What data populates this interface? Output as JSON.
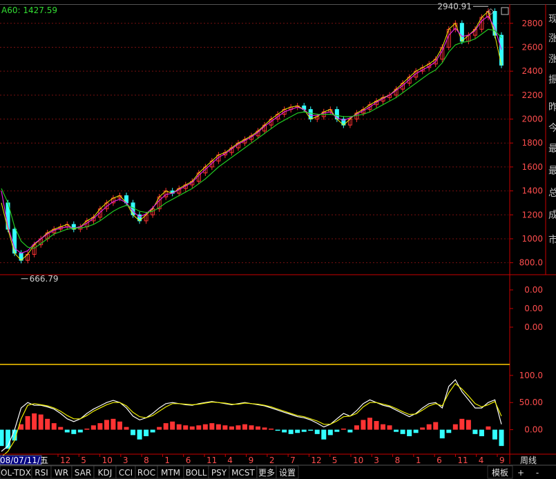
{
  "ma_label": "A60: 1427.59",
  "right_panel_chars": [
    "现",
    "涨",
    "涨",
    "振",
    "昨",
    "今",
    "最",
    "最",
    "总",
    "成",
    "市"
  ],
  "tabs": [
    {
      "label": "OL-TDX"
    },
    {
      "label": "RSI"
    },
    {
      "label": "WR"
    },
    {
      "label": "SAR"
    },
    {
      "label": "KDJ"
    },
    {
      "label": "CCI"
    },
    {
      "label": "ROC"
    },
    {
      "label": "MTM"
    },
    {
      "label": "BOLL"
    },
    {
      "label": "PSY"
    },
    {
      "label": "MCST"
    },
    {
      "label": "更多"
    },
    {
      "label": "设置"
    }
  ],
  "bottom_right": {
    "template": "模板",
    "plus": "+",
    "minus": "-"
  },
  "period_label": "周线",
  "colors": {
    "background": "#000000",
    "axis": "#cc0000",
    "ma_long": "#22cc22",
    "ma_short": "#dd22dd",
    "ma_mid": "#eeee00",
    "up": "#ff3333",
    "down": "#33ffff"
  },
  "chart_data": [
    {
      "type": "line",
      "title": "",
      "ylim": [
        700,
        2960
      ],
      "y_ticks": [
        "800.0",
        "1000",
        "1200",
        "1400",
        "1600",
        "1800",
        "2000",
        "2200",
        "2400",
        "2600",
        "2800"
      ],
      "y_tick_values": [
        800,
        1000,
        1200,
        1400,
        1600,
        1800,
        2000,
        2200,
        2400,
        2600,
        2800
      ],
      "x_ticks": [
        "08/07/11/五",
        "12",
        "5",
        "10",
        "3",
        "8",
        "1",
        "6",
        "11",
        "4",
        "9",
        "2",
        "7",
        "12",
        "5",
        "10",
        "3",
        "8",
        "1",
        "6",
        "11",
        "4",
        "9"
      ],
      "annotations": [
        {
          "label": "2940.91",
          "value": 2940.91
        },
        {
          "label": "666.79",
          "value": 666.79
        }
      ],
      "series": [
        {
          "values": [
            1300,
            1080,
            880,
            820,
            870,
            950,
            1000,
            1050,
            1080,
            1100,
            1120,
            1080,
            1100,
            1150,
            1180,
            1250,
            1300,
            1340,
            1360,
            1300,
            1200,
            1150,
            1200,
            1250,
            1350,
            1400,
            1380,
            1420,
            1450,
            1480,
            1550,
            1600,
            1650,
            1700,
            1720,
            1760,
            1800,
            1830,
            1860,
            1900,
            1950,
            2000,
            2040,
            2080,
            2100,
            2110,
            2080,
            2000,
            2020,
            2060,
            2080,
            2000,
            1950,
            2000,
            2050,
            2080,
            2120,
            2150,
            2180,
            2200,
            2250,
            2300,
            2350,
            2400,
            2430,
            2460,
            2500,
            2600,
            2750,
            2800,
            2650,
            2700,
            2750,
            2850,
            2900,
            2700,
            2450
          ]
        },
        {
          "values": [
            1400,
            1100,
            920,
            880,
            900,
            960,
            1000,
            1040,
            1070,
            1090,
            1100,
            1090,
            1100,
            1130,
            1170,
            1220,
            1270,
            1310,
            1330,
            1300,
            1230,
            1180,
            1210,
            1260,
            1320,
            1370,
            1380,
            1410,
            1440,
            1470,
            1530,
            1580,
            1630,
            1680,
            1710,
            1750,
            1790,
            1820,
            1850,
            1890,
            1940,
            1980,
            2020,
            2060,
            2080,
            2100,
            2080,
            2030,
            2030,
            2050,
            2060,
            2010,
            1990,
            2010,
            2040,
            2070,
            2100,
            2140,
            2170,
            2200,
            2240,
            2280,
            2330,
            2380,
            2410,
            2440,
            2480,
            2570,
            2700,
            2760,
            2690,
            2700,
            2740,
            2820,
            2860,
            2760,
            2580
          ]
        },
        {
          "values": [
            1420,
            1300,
            1100,
            980,
            930,
            920,
            960,
            1000,
            1040,
            1060,
            1080,
            1090,
            1090,
            1100,
            1120,
            1150,
            1190,
            1230,
            1260,
            1280,
            1260,
            1230,
            1220,
            1230,
            1260,
            1300,
            1330,
            1360,
            1390,
            1420,
            1460,
            1500,
            1550,
            1600,
            1640,
            1680,
            1720,
            1760,
            1800,
            1840,
            1880,
            1920,
            1960,
            1990,
            2020,
            2050,
            2060,
            2050,
            2040,
            2040,
            2040,
            2030,
            2020,
            2020,
            2030,
            2040,
            2060,
            2090,
            2120,
            2150,
            2180,
            2220,
            2260,
            2300,
            2340,
            2380,
            2410,
            2470,
            2560,
            2620,
            2640,
            2650,
            2670,
            2710,
            2750,
            2740,
            2680
          ]
        }
      ]
    },
    {
      "type": "line",
      "y_ticks": [
        "0.00",
        "0.00",
        "0.00"
      ]
    },
    {
      "type": "bar",
      "y_ticks": [
        "100.0",
        "50.00",
        "0.00"
      ],
      "y_tick_values": [
        100,
        50,
        0
      ],
      "ylim": [
        -40,
        105
      ],
      "histogram": [
        -30,
        -35,
        -20,
        10,
        25,
        30,
        28,
        20,
        12,
        5,
        -5,
        -8,
        -5,
        2,
        8,
        12,
        18,
        20,
        15,
        5,
        -10,
        -18,
        -12,
        -5,
        5,
        12,
        15,
        10,
        8,
        6,
        8,
        10,
        12,
        10,
        8,
        6,
        8,
        10,
        8,
        6,
        4,
        2,
        -2,
        -5,
        -8,
        -6,
        -4,
        -2,
        -8,
        -18,
        -10,
        -4,
        2,
        -5,
        8,
        18,
        22,
        16,
        10,
        8,
        -4,
        -8,
        -12,
        -6,
        4,
        10,
        14,
        -16,
        -6,
        10,
        20,
        18,
        -8,
        -12,
        6,
        -18,
        -30
      ],
      "series": [
        {
          "values": [
            -40,
            -30,
            0,
            40,
            50,
            45,
            45,
            42,
            38,
            30,
            20,
            15,
            20,
            30,
            38,
            44,
            50,
            54,
            50,
            40,
            25,
            18,
            22,
            30,
            40,
            48,
            50,
            48,
            46,
            45,
            48,
            50,
            52,
            50,
            48,
            46,
            48,
            50,
            48,
            46,
            44,
            40,
            36,
            32,
            28,
            24,
            22,
            18,
            12,
            5,
            10,
            20,
            30,
            25,
            35,
            48,
            55,
            50,
            45,
            42,
            36,
            30,
            24,
            30,
            40,
            48,
            50,
            40,
            80,
            92,
            70,
            55,
            40,
            40,
            50,
            55,
            10
          ]
        },
        {
          "values": [
            -50,
            -40,
            -20,
            20,
            45,
            48,
            46,
            44,
            40,
            34,
            26,
            20,
            20,
            26,
            34,
            40,
            46,
            50,
            50,
            44,
            32,
            24,
            22,
            26,
            34,
            42,
            48,
            48,
            47,
            46,
            47,
            49,
            51,
            50,
            49,
            47,
            47,
            49,
            48,
            47,
            45,
            42,
            38,
            34,
            30,
            26,
            24,
            20,
            16,
            10,
            10,
            16,
            24,
            25,
            30,
            42,
            50,
            50,
            47,
            44,
            39,
            33,
            28,
            29,
            36,
            44,
            48,
            44,
            68,
            85,
            75,
            62,
            48,
            42,
            46,
            52,
            25
          ]
        }
      ]
    }
  ]
}
